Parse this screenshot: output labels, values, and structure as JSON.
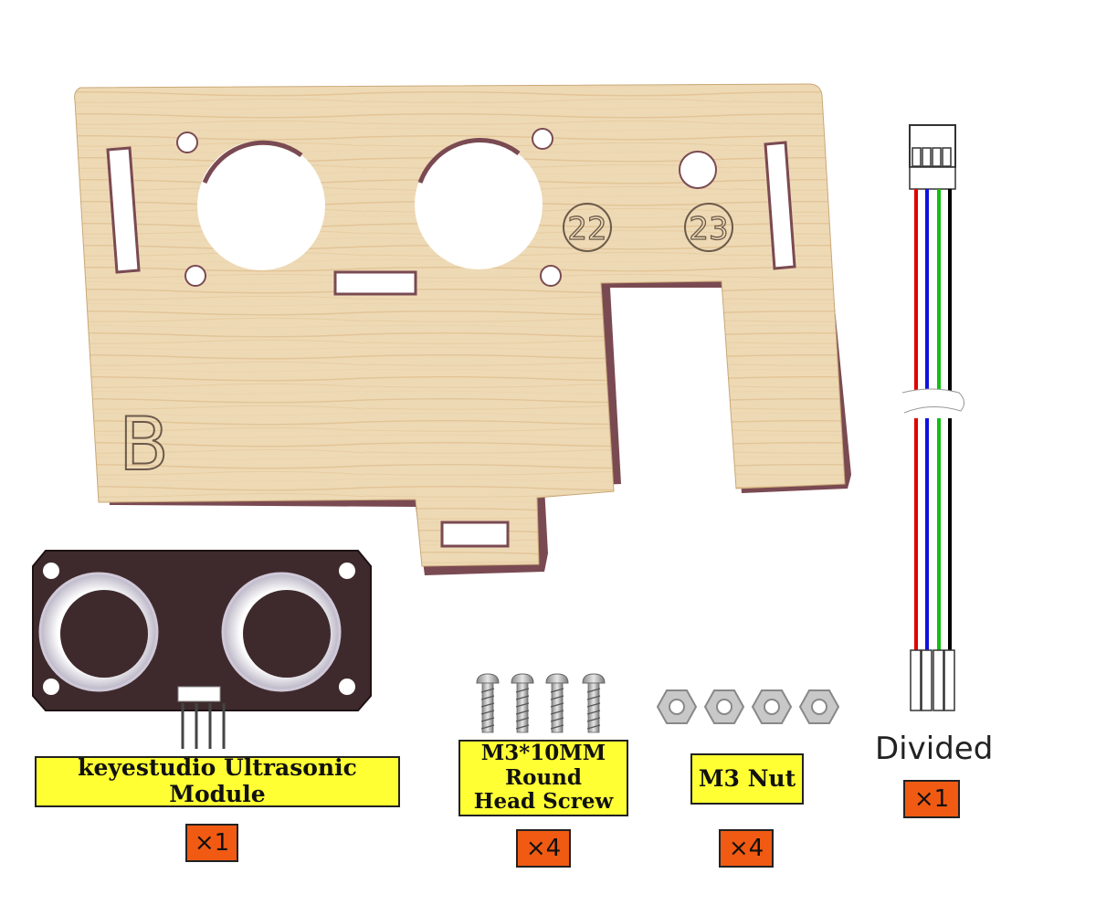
{
  "board": {
    "letter": "B",
    "mark_left": "22",
    "mark_right": "23"
  },
  "parts": [
    {
      "name": "keyestudio Ultrasonic Module",
      "qty": "×1"
    },
    {
      "name_line1": "M3*10MM Round",
      "name_line2": "Head Screw",
      "qty": "×4"
    },
    {
      "name": "M3 Nut",
      "qty": "×4"
    },
    {
      "name": "Divided",
      "qty": "×1"
    }
  ],
  "colors": {
    "wood": "#eed9b5",
    "label": "#ffff33",
    "qty": "#f05a12",
    "module": "#3e2a2c",
    "wire_red": "#e00000",
    "wire_blue": "#1010e0",
    "wire_green": "#10c010",
    "wire_black": "#000000"
  }
}
